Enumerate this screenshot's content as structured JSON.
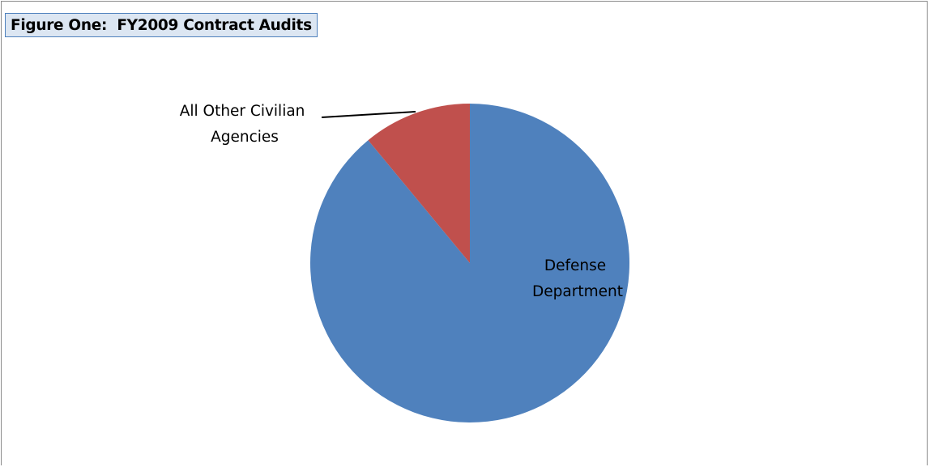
{
  "chart_data": {
    "type": "pie",
    "title": "Figure One:  FY2009 Contract Audits",
    "slices": [
      {
        "label_lines": [
          "Defense",
          "Department"
        ],
        "value": 89,
        "color": "#4f81bd"
      },
      {
        "label_lines": [
          "All Other Civilian",
          "Agencies"
        ],
        "value": 11,
        "color": "#c0504d"
      }
    ],
    "legend": "none"
  }
}
